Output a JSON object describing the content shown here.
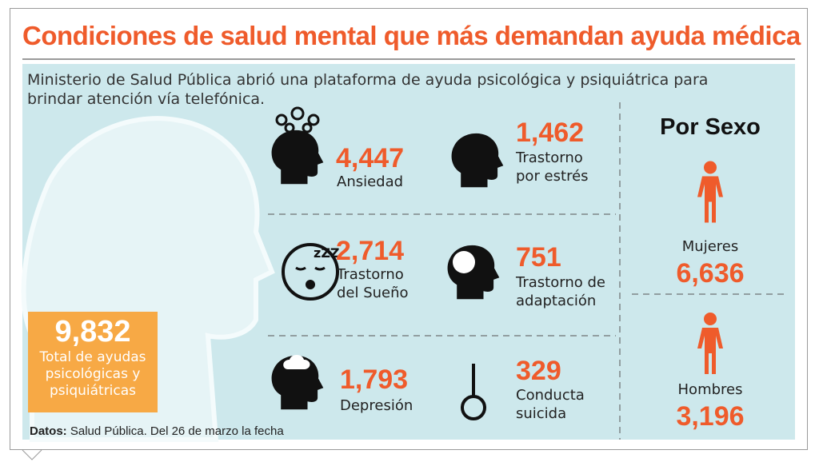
{
  "title": "Condiciones de salud mental que más demandan ayuda médica",
  "intro": "Ministerio de Salud Pública abrió una plataforma de ayuda psicológica y psiquiátrica para brindar atención vía telefónica.",
  "total": {
    "value": "9,832",
    "label": "Total de ayudas psicológicas y psiquiátricas"
  },
  "conditions": [
    {
      "value": "4,447",
      "label": "Ansiedad"
    },
    {
      "value": "1,462",
      "label": "Trastorno por estrés"
    },
    {
      "value": "2,714",
      "label": "Trastorno del Sueño"
    },
    {
      "value": "751",
      "label": "Trastorno de adaptación"
    },
    {
      "value": "1,793",
      "label": "Depresión"
    },
    {
      "value": "329",
      "label": "Conducta suicida"
    }
  ],
  "by_sex": {
    "title": "Por Sexo",
    "groups": [
      {
        "label": "Mujeres",
        "value": "6,636"
      },
      {
        "label": "Hombres",
        "value": "3,196"
      }
    ]
  },
  "source": {
    "label": "Datos:",
    "text": "Salud Pública. Del 26 de marzo la fecha"
  }
}
